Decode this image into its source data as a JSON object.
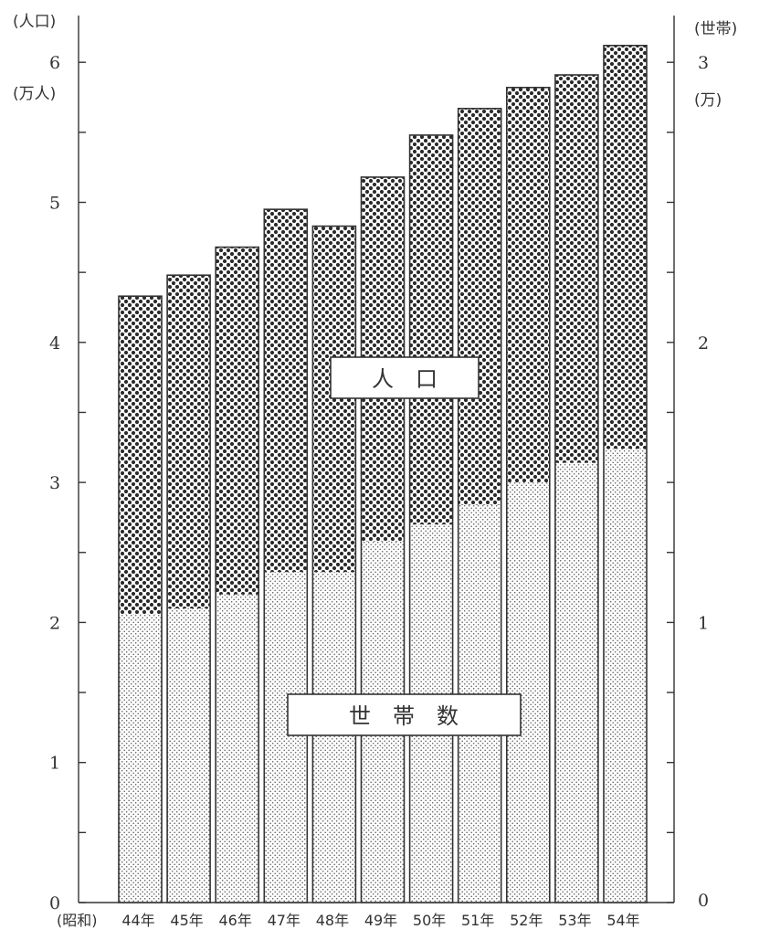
{
  "chart_data": {
    "type": "bar",
    "stacking": "overlay",
    "categories": [
      "44年",
      "45年",
      "46年",
      "47年",
      "48年",
      "49年",
      "50年",
      "51年",
      "52年",
      "53年",
      "54年"
    ],
    "x_prefix": "(昭和)",
    "series": [
      {
        "name": "人　口",
        "axis": "left",
        "values": [
          4.33,
          4.48,
          4.68,
          4.95,
          4.83,
          5.18,
          5.48,
          5.67,
          5.82,
          5.91,
          6.12
        ]
      },
      {
        "name": "世　帯　数",
        "axis": "right",
        "values": [
          1.03,
          1.05,
          1.1,
          1.18,
          1.18,
          1.29,
          1.35,
          1.42,
          1.5,
          1.57,
          1.62
        ]
      }
    ],
    "left_axis": {
      "label_top": "(人口)",
      "unit": "(万人)",
      "ylim": [
        0,
        6.5
      ],
      "ticks": [
        0,
        1,
        2,
        3,
        4,
        5,
        6
      ],
      "tick_labels": [
        "0",
        "1",
        "2",
        "3",
        "4",
        "5",
        "6"
      ]
    },
    "right_axis": {
      "label_top": "(世帯)",
      "unit": "(万)",
      "ylim": [
        0,
        3.25
      ],
      "ticks": [
        0,
        1,
        2,
        3
      ],
      "tick_labels": [
        "0",
        "1",
        "2",
        "3"
      ]
    },
    "legend": [
      {
        "label": "人　口",
        "pattern": "dots-dense"
      },
      {
        "label": "世　帯　数",
        "pattern": "dots-fine"
      }
    ],
    "grid": false
  },
  "colors": {
    "ink": "#333333",
    "background": "#ffffff"
  }
}
